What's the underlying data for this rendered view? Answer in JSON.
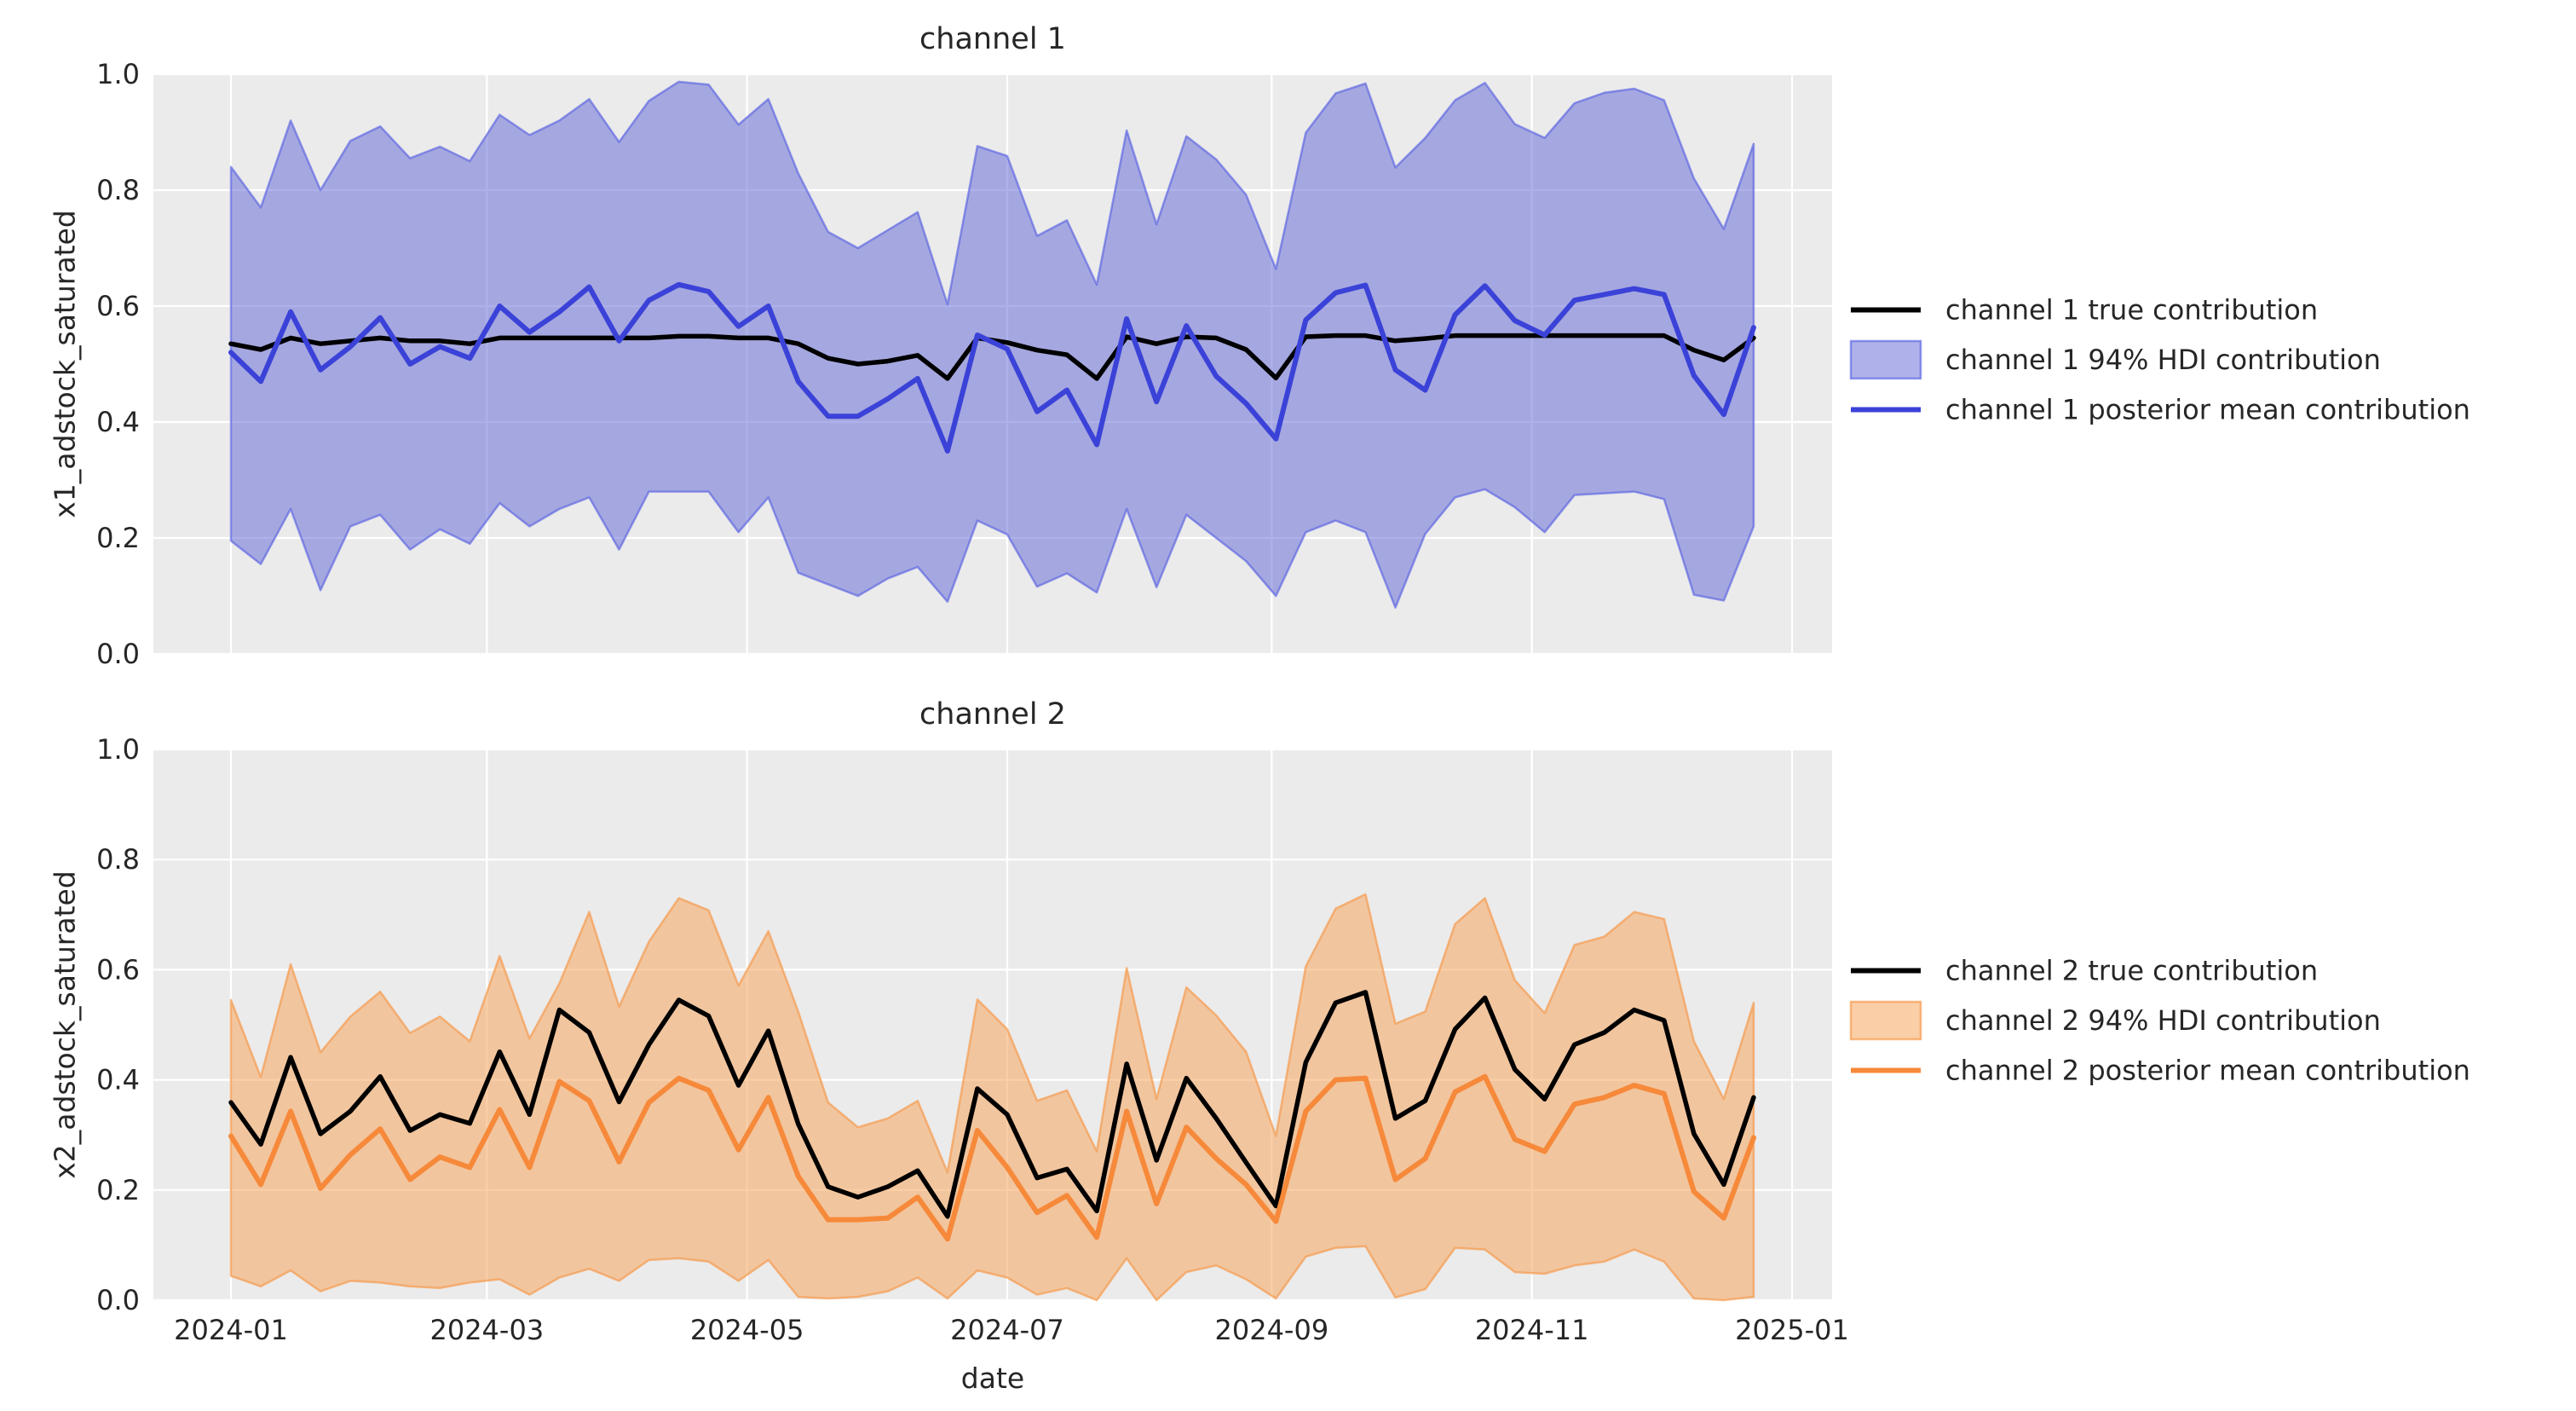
{
  "figure": {
    "background": "#ffffff",
    "axes_background": "#ebebeb",
    "grid_color": "#ffffff",
    "text_color": "#262626"
  },
  "chart_data": [
    {
      "type": "line",
      "title": "channel 1",
      "xlabel": "date",
      "ylabel": "x1_adstock_saturated",
      "ylim": [
        0.0,
        1.0
      ],
      "y_tick_labels": [
        "0.0",
        "0.2",
        "0.4",
        "0.6",
        "0.8",
        "1.0"
      ],
      "x_tick_labels": [
        "2024-01",
        "2024-03",
        "2024-05",
        "2024-07",
        "2024-09",
        "2024-11",
        "2025-01"
      ],
      "x_tick_days": [
        0,
        60,
        121,
        182,
        244,
        305,
        366
      ],
      "x_start_date": "2024-01-01",
      "x_step_days": 7,
      "dates": [
        "2024-01-01",
        "2024-01-08",
        "2024-01-15",
        "2024-01-22",
        "2024-01-29",
        "2024-02-05",
        "2024-02-12",
        "2024-02-19",
        "2024-02-26",
        "2024-03-04",
        "2024-03-11",
        "2024-03-18",
        "2024-03-25",
        "2024-04-01",
        "2024-04-08",
        "2024-04-15",
        "2024-04-22",
        "2024-04-29",
        "2024-05-06",
        "2024-05-13",
        "2024-05-20",
        "2024-05-27",
        "2024-06-03",
        "2024-06-10",
        "2024-06-17",
        "2024-06-24",
        "2024-07-01",
        "2024-07-08",
        "2024-07-15",
        "2024-07-22",
        "2024-07-29",
        "2024-08-05",
        "2024-08-12",
        "2024-08-19",
        "2024-08-26",
        "2024-09-02",
        "2024-09-09",
        "2024-09-16",
        "2024-09-23",
        "2024-09-30",
        "2024-10-07",
        "2024-10-14",
        "2024-10-21",
        "2024-10-28",
        "2024-11-04",
        "2024-11-11",
        "2024-11-18",
        "2024-11-25",
        "2024-12-02",
        "2024-12-09",
        "2024-12-16",
        "2024-12-23"
      ],
      "legend_position": "center right",
      "legend": [
        {
          "kind": "line",
          "color": "#000000",
          "label": "channel 1 true contribution"
        },
        {
          "kind": "patch",
          "label": "channel 1 94% HDI contribution"
        },
        {
          "kind": "line",
          "color": "#3b42d8",
          "label": "channel 1 posterior mean contribution"
        }
      ],
      "colors": {
        "true_line": "#000000",
        "mean_line": "#3b42d8",
        "band_fill": "rgba(95,99,214,0.50)",
        "band_edge": "rgba(80,90,225,0.60)"
      },
      "series": [
        {
          "name": "channel 1 true contribution",
          "values": [
            0.535,
            0.525,
            0.545,
            0.535,
            0.54,
            0.545,
            0.54,
            0.54,
            0.535,
            0.545,
            0.545,
            0.545,
            0.545,
            0.545,
            0.545,
            0.548,
            0.548,
            0.545,
            0.545,
            0.535,
            0.51,
            0.5,
            0.505,
            0.515,
            0.475,
            0.545,
            0.537,
            0.524,
            0.516,
            0.475,
            0.547,
            0.535,
            0.547,
            0.545,
            0.525,
            0.476,
            0.547,
            0.549,
            0.549,
            0.54,
            0.544,
            0.549,
            0.549,
            0.549,
            0.549,
            0.549,
            0.549,
            0.549,
            0.549,
            0.524,
            0.507,
            0.545
          ]
        },
        {
          "name": "channel 1 posterior mean contribution",
          "values": [
            0.52,
            0.47,
            0.59,
            0.49,
            0.53,
            0.58,
            0.5,
            0.53,
            0.51,
            0.6,
            0.555,
            0.59,
            0.633,
            0.54,
            0.61,
            0.637,
            0.625,
            0.565,
            0.6,
            0.47,
            0.41,
            0.41,
            0.44,
            0.475,
            0.35,
            0.55,
            0.526,
            0.418,
            0.455,
            0.361,
            0.578,
            0.435,
            0.566,
            0.479,
            0.432,
            0.371,
            0.576,
            0.623,
            0.636,
            0.49,
            0.455,
            0.585,
            0.635,
            0.575,
            0.55,
            0.61,
            0.62,
            0.63,
            0.62,
            0.48,
            0.413,
            0.563
          ]
        }
      ],
      "band": {
        "name": "channel 1 94% HDI contribution",
        "upper": [
          0.84,
          0.77,
          0.92,
          0.8,
          0.885,
          0.91,
          0.855,
          0.875,
          0.85,
          0.93,
          0.895,
          0.92,
          0.957,
          0.883,
          0.954,
          0.987,
          0.982,
          0.913,
          0.957,
          0.829,
          0.728,
          0.7,
          0.731,
          0.762,
          0.603,
          0.876,
          0.859,
          0.721,
          0.748,
          0.637,
          0.903,
          0.741,
          0.893,
          0.853,
          0.792,
          0.664,
          0.899,
          0.967,
          0.984,
          0.839,
          0.89,
          0.955,
          0.985,
          0.914,
          0.89,
          0.95,
          0.968,
          0.975,
          0.955,
          0.82,
          0.733,
          0.88
        ],
        "lower": [
          0.195,
          0.155,
          0.25,
          0.11,
          0.22,
          0.24,
          0.18,
          0.215,
          0.19,
          0.26,
          0.22,
          0.25,
          0.27,
          0.18,
          0.28,
          0.28,
          0.28,
          0.21,
          0.27,
          0.14,
          0.12,
          0.1,
          0.13,
          0.15,
          0.09,
          0.23,
          0.206,
          0.116,
          0.139,
          0.106,
          0.25,
          0.115,
          0.24,
          0.2,
          0.16,
          0.1,
          0.21,
          0.23,
          0.21,
          0.08,
          0.207,
          0.27,
          0.284,
          0.253,
          0.21,
          0.274,
          0.277,
          0.28,
          0.267,
          0.102,
          0.092,
          0.22
        ]
      }
    },
    {
      "type": "line",
      "title": "channel 2",
      "xlabel": "date",
      "ylabel": "x2_adstock_saturated",
      "ylim": [
        0.0,
        1.0
      ],
      "y_tick_labels": [
        "0.0",
        "0.2",
        "0.4",
        "0.6",
        "0.8",
        "1.0"
      ],
      "x_tick_labels": [
        "2024-01",
        "2024-03",
        "2024-05",
        "2024-07",
        "2024-09",
        "2024-11",
        "2025-01"
      ],
      "x_tick_days": [
        0,
        60,
        121,
        182,
        244,
        305,
        366
      ],
      "x_start_date": "2024-01-01",
      "x_step_days": 7,
      "legend_position": "center right",
      "legend": [
        {
          "kind": "line",
          "color": "#000000",
          "label": "channel 2 true contribution"
        },
        {
          "kind": "patch",
          "label": "channel 2 94% HDI contribution"
        },
        {
          "kind": "line",
          "color": "#f6893a",
          "label": "channel 2 posterior mean contribution"
        }
      ],
      "colors": {
        "true_line": "#000000",
        "mean_line": "#f6893a",
        "band_fill": "rgba(245,166,95,0.55)",
        "band_edge": "rgba(246,150,70,0.65)"
      },
      "series": [
        {
          "name": "channel 2 true contribution",
          "values": [
            0.359,
            0.283,
            0.441,
            0.302,
            0.343,
            0.406,
            0.308,
            0.337,
            0.321,
            0.451,
            0.337,
            0.527,
            0.486,
            0.36,
            0.464,
            0.545,
            0.516,
            0.39,
            0.489,
            0.32,
            0.206,
            0.187,
            0.206,
            0.235,
            0.152,
            0.384,
            0.337,
            0.222,
            0.238,
            0.162,
            0.429,
            0.254,
            0.403,
            0.33,
            0.25,
            0.171,
            0.432,
            0.54,
            0.559,
            0.33,
            0.362,
            0.492,
            0.549,
            0.419,
            0.365,
            0.464,
            0.486,
            0.527,
            0.508,
            0.302,
            0.21,
            0.368
          ]
        },
        {
          "name": "channel 2 posterior mean contribution",
          "values": [
            0.298,
            0.21,
            0.343,
            0.203,
            0.264,
            0.311,
            0.219,
            0.26,
            0.241,
            0.346,
            0.241,
            0.397,
            0.362,
            0.251,
            0.359,
            0.403,
            0.381,
            0.273,
            0.368,
            0.225,
            0.146,
            0.146,
            0.149,
            0.187,
            0.111,
            0.308,
            0.241,
            0.159,
            0.19,
            0.114,
            0.343,
            0.175,
            0.314,
            0.257,
            0.21,
            0.143,
            0.343,
            0.4,
            0.403,
            0.219,
            0.257,
            0.378,
            0.406,
            0.292,
            0.27,
            0.356,
            0.368,
            0.39,
            0.375,
            0.197,
            0.149,
            0.295
          ]
        }
      ],
      "band": {
        "name": "channel 2 94% HDI contribution",
        "upper": [
          0.545,
          0.405,
          0.61,
          0.45,
          0.515,
          0.56,
          0.485,
          0.515,
          0.47,
          0.625,
          0.475,
          0.575,
          0.705,
          0.533,
          0.651,
          0.73,
          0.708,
          0.571,
          0.67,
          0.524,
          0.359,
          0.314,
          0.33,
          0.362,
          0.232,
          0.546,
          0.492,
          0.362,
          0.381,
          0.27,
          0.603,
          0.365,
          0.568,
          0.517,
          0.451,
          0.298,
          0.606,
          0.711,
          0.737,
          0.502,
          0.524,
          0.683,
          0.73,
          0.581,
          0.521,
          0.645,
          0.66,
          0.705,
          0.692,
          0.47,
          0.365,
          0.54
        ],
        "lower": [
          0.044,
          0.025,
          0.054,
          0.016,
          0.035,
          0.032,
          0.025,
          0.022,
          0.032,
          0.038,
          0.01,
          0.041,
          0.057,
          0.035,
          0.073,
          0.076,
          0.07,
          0.035,
          0.073,
          0.006,
          0.003,
          0.006,
          0.016,
          0.041,
          0.003,
          0.054,
          0.041,
          0.01,
          0.022,
          0.0,
          0.076,
          0.0,
          0.051,
          0.063,
          0.038,
          0.003,
          0.079,
          0.095,
          0.098,
          0.005,
          0.02,
          0.095,
          0.092,
          0.051,
          0.048,
          0.063,
          0.07,
          0.092,
          0.07,
          0.003,
          0.0,
          0.006
        ]
      }
    }
  ]
}
